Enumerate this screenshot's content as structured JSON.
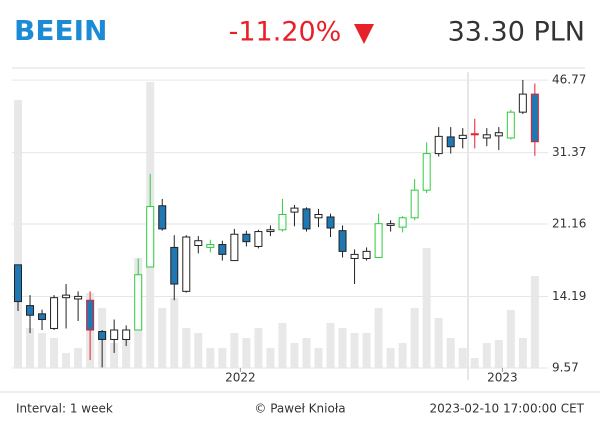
{
  "chart_data": {
    "type": "candlestick",
    "title": "BEEIN",
    "change": "-11.20%",
    "price": "33.30 PLN",
    "interval": "Interval: 1 week",
    "copyright": "© Paweł Knioła",
    "timestamp": "2023-02-10 17:00:00 CET",
    "open": [
      16.9,
      13.5,
      12.9,
      11.9,
      14.1,
      14.0,
      13.9,
      11.7,
      11.2,
      11.2,
      11.8,
      16.7,
      23.4,
      18.6,
      14.6,
      18.8,
      18.6,
      18.9,
      17.3,
      20.0,
      18.7,
      20.3,
      20.5,
      22.6,
      23.0,
      21.9,
      22.0,
      20.4,
      17.5,
      17.5,
      17.6,
      21.0,
      20.8,
      21.9,
      25.5,
      31.2,
      34.2,
      33.9,
      34.8,
      34.0,
      34.4,
      34.0,
      39.2,
      43.3
    ],
    "high": [
      16.9,
      14.3,
      13.2,
      14.3,
      15.2,
      14.6,
      14.6,
      11.8,
      12.5,
      12.1,
      17.5,
      27.9,
      24.3,
      19.9,
      19.9,
      19.8,
      19.4,
      19.3,
      20.6,
      20.4,
      20.5,
      21.0,
      24.3,
      23.5,
      23.2,
      23.0,
      22.4,
      21.0,
      18.4,
      18.6,
      22.4,
      21.6,
      22.1,
      27.1,
      33.2,
      36.1,
      36.1,
      35.9,
      37.8,
      35.9,
      36.1,
      39.7,
      46.8,
      45.9
    ],
    "low": [
      13.1,
      11.6,
      11.8,
      11.8,
      11.9,
      12.4,
      10.0,
      9.6,
      10.4,
      10.8,
      11.8,
      16.7,
      20.4,
      13.9,
      14.5,
      18.0,
      18.1,
      17.3,
      17.3,
      18.7,
      18.5,
      19.8,
      20.3,
      20.9,
      20.3,
      20.8,
      19.7,
      17.6,
      15.2,
      17.3,
      17.6,
      20.3,
      20.2,
      21.6,
      25.1,
      30.7,
      31.2,
      32.1,
      32.1,
      32.5,
      31.8,
      33.7,
      38.8,
      30.8
    ],
    "close": [
      13.8,
      12.8,
      12.5,
      14.1,
      14.3,
      14.2,
      11.8,
      11.2,
      11.8,
      11.8,
      16.0,
      23.3,
      20.6,
      15.2,
      19.7,
      19.3,
      18.9,
      17.9,
      20.0,
      19.2,
      20.3,
      20.5,
      22.3,
      23.1,
      20.6,
      22.3,
      20.7,
      18.2,
      17.9,
      18.2,
      21.2,
      21.2,
      21.9,
      25.5,
      31.2,
      34.3,
      32.4,
      34.5,
      34.6,
      34.6,
      35.0,
      39.2,
      43.3,
      33.3
    ],
    "outline_colors": [
      "#222",
      "#222",
      "#222",
      "#222",
      "#222",
      "#222",
      "#e8202a",
      "#222",
      "#222",
      "#222",
      "#2ecc40",
      "#2ecc40",
      "#222",
      "#222",
      "#222",
      "#222",
      "#2ecc40",
      "#222",
      "#222",
      "#222",
      "#222",
      "#222",
      "#2ecc40",
      "#222",
      "#222",
      "#222",
      "#222",
      "#222",
      "#222",
      "#222",
      "#2ecc40",
      "#222",
      "#2ecc40",
      "#2ecc40",
      "#2ecc40",
      "#222",
      "#222",
      "#222",
      "#e8202a",
      "#222",
      "#222",
      "#2ecc40",
      "#222",
      "#e8202a"
    ],
    "down_color": "#1f77b4",
    "up_color": "#ffffff",
    "volume": [
      268,
      40,
      35,
      30,
      15,
      20,
      75,
      60,
      25,
      30,
      110,
      286,
      60,
      70,
      40,
      35,
      20,
      20,
      35,
      30,
      40,
      20,
      45,
      25,
      30,
      20,
      45,
      40,
      35,
      35,
      60,
      20,
      25,
      60,
      120,
      50,
      30,
      20,
      10,
      25,
      28,
      58,
      30,
      92
    ],
    "volume_color": "#e8e8e8",
    "volume_lim": [
      0,
      300
    ],
    "ylim": [
      9.57,
      50
    ],
    "yticks": [
      9.57,
      14.19,
      21.16,
      31.37,
      46.77
    ],
    "log_scale": true,
    "grid": true,
    "xticks": [
      {
        "value": 18.5,
        "label": "2022"
      },
      {
        "value": 40.3,
        "label": "2023"
      }
    ]
  }
}
